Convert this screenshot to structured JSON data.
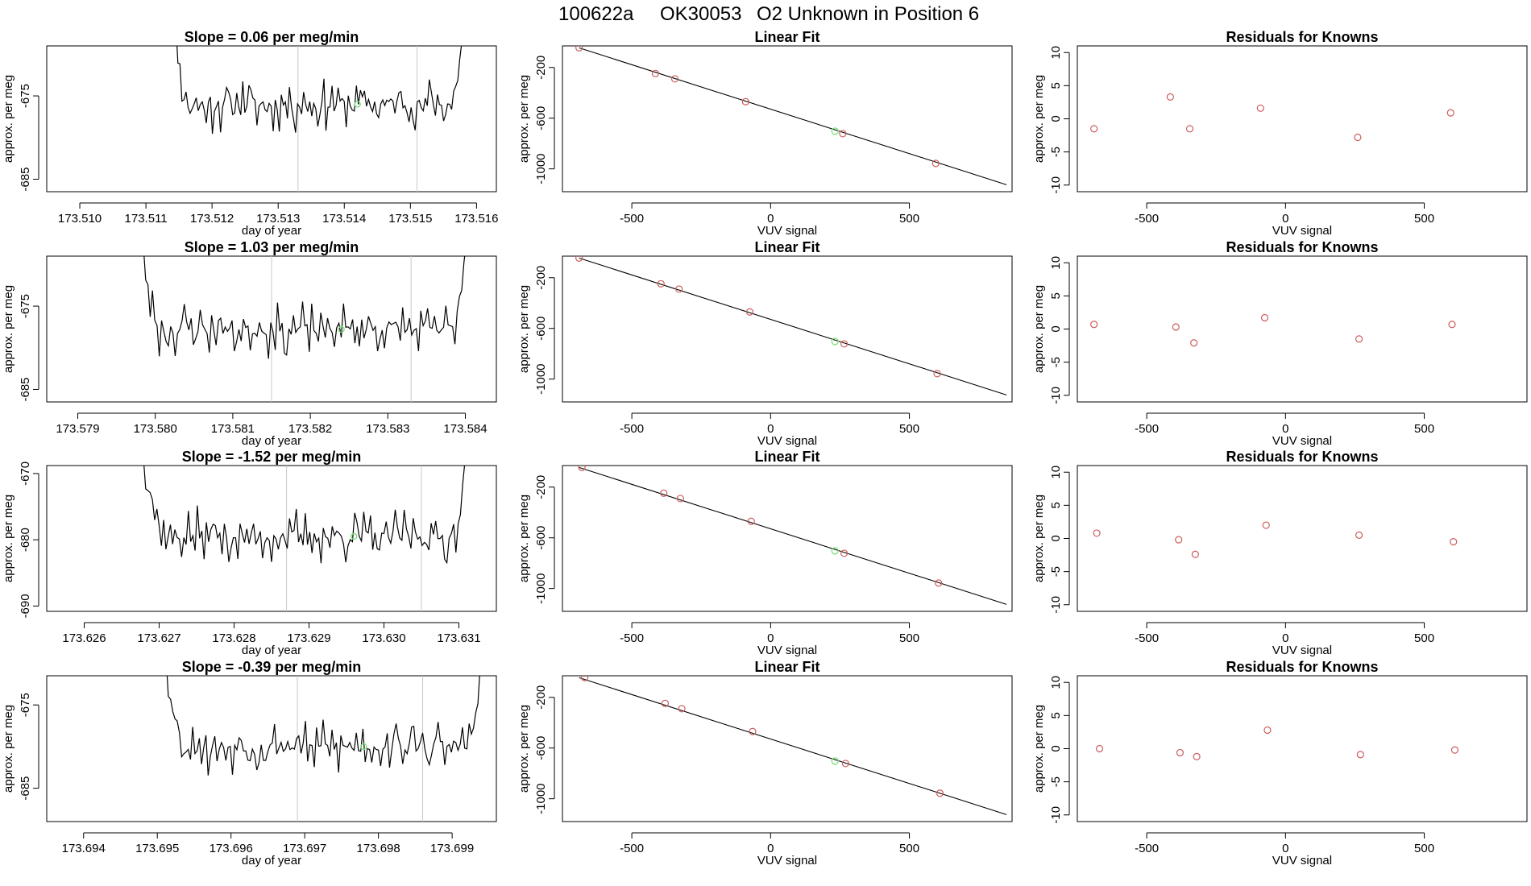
{
  "page": {
    "title_parts": [
      "100622a",
      "OK30053",
      "O2 Unknown in Position  6"
    ]
  },
  "colors": {
    "line": "#000000",
    "known_points": "#cd5c5c",
    "unknown_point": "#7ee07e",
    "guide_lines": "#c8c8c8",
    "fit_line": "#000000"
  },
  "chart_data": [
    {
      "type": "line",
      "row": 0,
      "col": 0,
      "title": "Slope =  0.06  per meg/min",
      "xlabel": "day of year",
      "ylabel": "approx. per meg",
      "xlim": [
        173.5095,
        173.5163
      ],
      "ylim": [
        -686.5,
        -669.0
      ],
      "xticks": [
        173.51,
        173.511,
        173.512,
        173.513,
        173.514,
        173.515,
        173.516
      ],
      "xtick_labels": [
        "173.510",
        "173.511",
        "173.512",
        "173.513",
        "173.514",
        "173.515",
        "173.516"
      ],
      "yticks": [
        -675,
        -685
      ],
      "ytick_labels": [
        "-675",
        "-685"
      ],
      "series_start": 173.5113,
      "series_end": 173.5159,
      "series_seed": 11,
      "vlines": [
        173.5133,
        173.5151
      ],
      "highlight": {
        "x": 173.5142,
        "y": -676.0
      }
    },
    {
      "type": "scatter",
      "row": 0,
      "col": 1,
      "title": "Linear Fit",
      "xlabel": "VUV signal",
      "ylabel": "approx. per meg",
      "xlim": [
        -750,
        870
      ],
      "ylim": [
        -1180,
        -30
      ],
      "xticks": [
        -500,
        0,
        500
      ],
      "xtick_labels": [
        "-500",
        "0",
        "500"
      ],
      "yticks": [
        -200,
        -600,
        -1000
      ],
      "ytick_labels": [
        "-200",
        "-600",
        "-1000"
      ],
      "points": [
        [
          -690,
          -45
        ],
        [
          -415,
          -248
        ],
        [
          -345,
          -290
        ],
        [
          -90,
          -470
        ],
        [
          260,
          -722
        ],
        [
          595,
          -957
        ]
      ],
      "unknown": {
        "x": 232,
        "y": -703
      },
      "fit_line": {
        "x": [
          -690,
          850
        ],
        "y": [
          -45,
          -1125
        ]
      }
    },
    {
      "type": "scatter",
      "row": 0,
      "col": 2,
      "title": "Residuals for Knowns",
      "xlabel": "VUV signal",
      "ylabel": "approx. per meg",
      "xlim": [
        -750,
        870
      ],
      "ylim": [
        -11,
        11
      ],
      "xticks": [
        -500,
        0,
        500
      ],
      "xtick_labels": [
        "-500",
        "0",
        "500"
      ],
      "yticks": [
        10,
        5,
        0,
        -5,
        -10
      ],
      "ytick_labels": [
        "10",
        "5",
        "0",
        "-5",
        "-10"
      ],
      "points": [
        [
          -690,
          -1.5
        ],
        [
          -415,
          3.3
        ],
        [
          -345,
          -1.5
        ],
        [
          -90,
          1.6
        ],
        [
          260,
          -2.8
        ],
        [
          595,
          0.9
        ]
      ]
    },
    {
      "type": "line",
      "row": 1,
      "col": 0,
      "title": "Slope =  1.03  per meg/min",
      "xlabel": "day of year",
      "ylabel": "approx. per meg",
      "xlim": [
        173.5786,
        173.5844
      ],
      "ylim": [
        -686.5,
        -669.0
      ],
      "xticks": [
        173.579,
        173.58,
        173.581,
        173.582,
        173.583,
        173.584
      ],
      "xtick_labels": [
        "173.579",
        "173.580",
        "173.581",
        "173.582",
        "173.583",
        "173.584"
      ],
      "yticks": [
        -675,
        -685
      ],
      "ytick_labels": [
        "-675",
        "-685"
      ],
      "series_start": 173.5797,
      "series_end": 173.5841,
      "series_seed": 23,
      "vlines": [
        173.5815,
        173.5833
      ],
      "highlight": {
        "x": 173.5824,
        "y": -677.8
      }
    },
    {
      "type": "scatter",
      "row": 1,
      "col": 1,
      "title": "Linear Fit",
      "xlabel": "VUV signal",
      "ylabel": "approx. per meg",
      "xlim": [
        -750,
        870
      ],
      "ylim": [
        -1180,
        -30
      ],
      "xticks": [
        -500,
        0,
        500
      ],
      "xtick_labels": [
        "-500",
        "0",
        "500"
      ],
      "yticks": [
        -200,
        -600,
        -1000
      ],
      "ytick_labels": [
        "-200",
        "-600",
        "-1000"
      ],
      "points": [
        [
          -690,
          -45
        ],
        [
          -395,
          -248
        ],
        [
          -330,
          -290
        ],
        [
          -75,
          -470
        ],
        [
          265,
          -722
        ],
        [
          600,
          -957
        ]
      ],
      "unknown": {
        "x": 232,
        "y": -703
      },
      "fit_line": {
        "x": [
          -690,
          850
        ],
        "y": [
          -45,
          -1125
        ]
      }
    },
    {
      "type": "scatter",
      "row": 1,
      "col": 2,
      "title": "Residuals for Knowns",
      "xlabel": "VUV signal",
      "ylabel": "approx. per meg",
      "xlim": [
        -750,
        870
      ],
      "ylim": [
        -11,
        11
      ],
      "xticks": [
        -500,
        0,
        500
      ],
      "xtick_labels": [
        "-500",
        "0",
        "500"
      ],
      "yticks": [
        10,
        5,
        0,
        -5,
        -10
      ],
      "ytick_labels": [
        "10",
        "5",
        "0",
        "-5",
        "-10"
      ],
      "points": [
        [
          -690,
          0.7
        ],
        [
          -395,
          0.3
        ],
        [
          -330,
          -2.1
        ],
        [
          -75,
          1.7
        ],
        [
          265,
          -1.5
        ],
        [
          600,
          0.7
        ]
      ]
    },
    {
      "type": "line",
      "row": 2,
      "col": 0,
      "title": "Slope =  -1.52  per meg/min",
      "xlabel": "day of year",
      "ylabel": "approx. per meg",
      "xlim": [
        173.6255,
        173.6315
      ],
      "ylim": [
        -690.8,
        -668.8
      ],
      "xticks": [
        173.626,
        173.627,
        173.628,
        173.629,
        173.63,
        173.631
      ],
      "xtick_labels": [
        "173.626",
        "173.627",
        "173.628",
        "173.629",
        "173.630",
        "173.631"
      ],
      "yticks": [
        -670,
        -680,
        -690
      ],
      "ytick_labels": [
        "-670",
        "-680",
        "-690"
      ],
      "series_start": 173.6267,
      "series_end": 173.6312,
      "series_seed": 37,
      "vlines": [
        173.6287,
        173.6305
      ],
      "highlight": {
        "x": 173.6296,
        "y": -679.5
      }
    },
    {
      "type": "scatter",
      "row": 2,
      "col": 1,
      "title": "Linear Fit",
      "xlabel": "VUV signal",
      "ylabel": "approx. per meg",
      "xlim": [
        -750,
        870
      ],
      "ylim": [
        -1180,
        -30
      ],
      "xticks": [
        -500,
        0,
        500
      ],
      "xtick_labels": [
        "-500",
        "0",
        "500"
      ],
      "yticks": [
        -200,
        -600,
        -1000
      ],
      "ytick_labels": [
        "-200",
        "-600",
        "-1000"
      ],
      "points": [
        [
          -680,
          -45
        ],
        [
          -385,
          -248
        ],
        [
          -325,
          -290
        ],
        [
          -70,
          -470
        ],
        [
          265,
          -722
        ],
        [
          605,
          -957
        ]
      ],
      "unknown": {
        "x": 232,
        "y": -703
      },
      "fit_line": {
        "x": [
          -690,
          850
        ],
        "y": [
          -45,
          -1125
        ]
      }
    },
    {
      "type": "scatter",
      "row": 2,
      "col": 2,
      "title": "Residuals for Knowns",
      "xlabel": "VUV signal",
      "ylabel": "approx. per meg",
      "xlim": [
        -750,
        870
      ],
      "ylim": [
        -11,
        11
      ],
      "xticks": [
        -500,
        0,
        500
      ],
      "xtick_labels": [
        "-500",
        "0",
        "500"
      ],
      "yticks": [
        10,
        5,
        0,
        -5,
        -10
      ],
      "ytick_labels": [
        "10",
        "5",
        "0",
        "-5",
        "-10"
      ],
      "points": [
        [
          -680,
          0.8
        ],
        [
          -385,
          -0.2
        ],
        [
          -325,
          -2.4
        ],
        [
          -70,
          2.0
        ],
        [
          265,
          0.5
        ],
        [
          605,
          -0.5
        ]
      ]
    },
    {
      "type": "line",
      "row": 3,
      "col": 0,
      "title": "Slope =  -0.39  per meg/min",
      "xlabel": "day of year",
      "ylabel": "approx. per meg",
      "xlim": [
        173.6935,
        173.6996
      ],
      "ylim": [
        -689.0,
        -671.5
      ],
      "xticks": [
        173.694,
        173.695,
        173.696,
        173.697,
        173.698,
        173.699
      ],
      "xtick_labels": [
        "173.694",
        "173.695",
        "173.696",
        "173.697",
        "173.698",
        "173.699"
      ],
      "yticks": [
        -675,
        -685
      ],
      "ytick_labels": [
        "-675",
        "-685"
      ],
      "series_start": 173.695,
      "series_end": 173.6995,
      "series_seed": 53,
      "vlines": [
        173.6969,
        173.6986
      ],
      "highlight": {
        "x": 173.6978,
        "y": -680.0
      }
    },
    {
      "type": "scatter",
      "row": 3,
      "col": 1,
      "title": "Linear Fit",
      "xlabel": "VUV signal",
      "ylabel": "approx. per meg",
      "xlim": [
        -750,
        870
      ],
      "ylim": [
        -1180,
        -30
      ],
      "xticks": [
        -500,
        0,
        500
      ],
      "xtick_labels": [
        "-500",
        "0",
        "500"
      ],
      "yticks": [
        -200,
        -600,
        -1000
      ],
      "ytick_labels": [
        "-200",
        "-600",
        "-1000"
      ],
      "points": [
        [
          -670,
          -45
        ],
        [
          -380,
          -248
        ],
        [
          -320,
          -290
        ],
        [
          -65,
          -470
        ],
        [
          270,
          -722
        ],
        [
          610,
          -957
        ]
      ],
      "unknown": {
        "x": 232,
        "y": -703
      },
      "fit_line": {
        "x": [
          -690,
          850
        ],
        "y": [
          -45,
          -1125
        ]
      }
    },
    {
      "type": "scatter",
      "row": 3,
      "col": 2,
      "title": "Residuals for Knowns",
      "xlabel": "VUV signal",
      "ylabel": "approx. per meg",
      "xlim": [
        -750,
        870
      ],
      "ylim": [
        -11,
        11
      ],
      "xticks": [
        -500,
        0,
        500
      ],
      "xtick_labels": [
        "-500",
        "0",
        "500"
      ],
      "yticks": [
        10,
        5,
        0,
        -5,
        -10
      ],
      "ytick_labels": [
        "10",
        "5",
        "0",
        "-5",
        "-10"
      ],
      "points": [
        [
          -670,
          0.0
        ],
        [
          -380,
          -0.6
        ],
        [
          -320,
          -1.2
        ],
        [
          -65,
          2.8
        ],
        [
          270,
          -0.9
        ],
        [
          610,
          -0.2
        ]
      ]
    }
  ]
}
